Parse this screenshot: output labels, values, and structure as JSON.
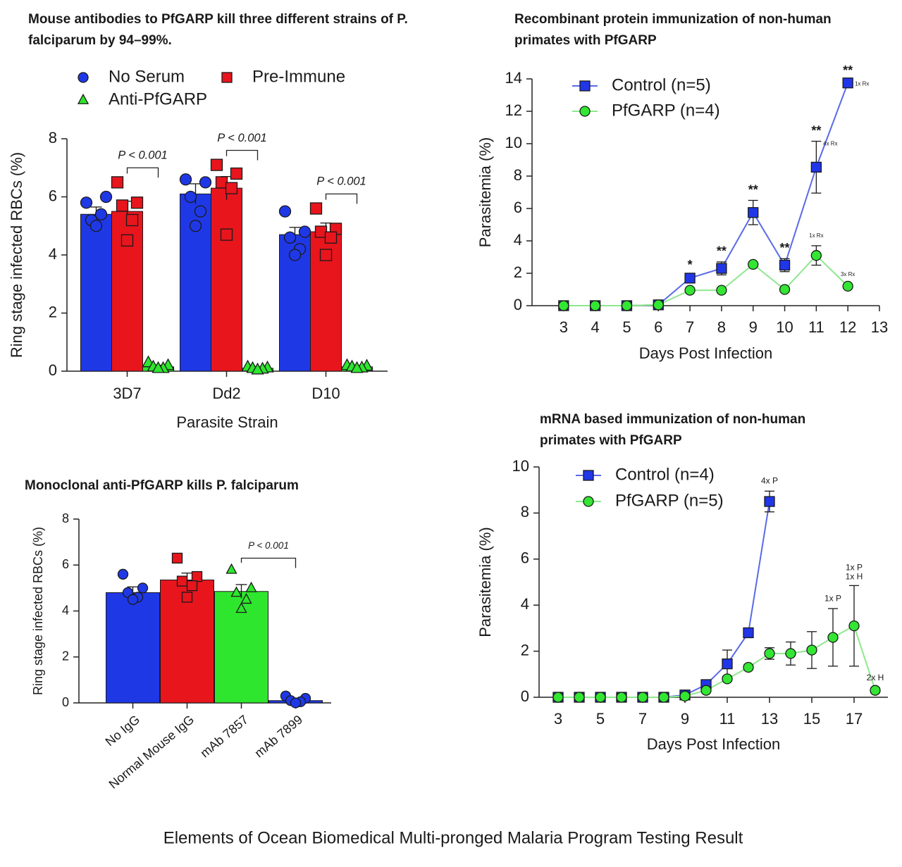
{
  "chart_data": [
    {
      "type": "bar",
      "title": "Mouse antibodies to PfGARP kill three different strains of P. falciparum by 94–99%.",
      "categories": [
        "3D7",
        "Dd2",
        "D10"
      ],
      "series": [
        {
          "name": "No Serum",
          "color": "#1f38e6",
          "marker": "circle",
          "values": [
            5.4,
            6.1,
            4.7
          ],
          "errors": [
            0.25,
            0.35,
            0.25
          ],
          "points": [
            [
              5.8,
              6.0,
              5.2,
              5.4,
              5.0
            ],
            [
              6.6,
              6.5,
              6.0,
              5.5,
              5.0
            ],
            [
              5.5,
              4.8,
              4.6,
              4.2,
              4.0
            ]
          ]
        },
        {
          "name": "Pre-Immune",
          "color": "#e8151d",
          "marker": "square",
          "values": [
            5.5,
            6.3,
            4.8
          ],
          "errors": [
            0.35,
            0.4,
            0.3
          ],
          "points": [
            [
              6.5,
              5.8,
              5.7,
              5.2,
              4.5
            ],
            [
              7.1,
              6.8,
              6.5,
              6.3,
              4.7
            ],
            [
              5.6,
              4.9,
              4.8,
              4.6,
              4.0
            ]
          ]
        },
        {
          "name": "Anti-PfGARP",
          "color": "#2ee62e",
          "marker": "triangle",
          "values": [
            0.15,
            0.1,
            0.15
          ],
          "errors": [
            0.05,
            0.03,
            0.04
          ],
          "points": [
            [
              0.3,
              0.2,
              0.15,
              0.1,
              0.1
            ],
            [
              0.15,
              0.12,
              0.1,
              0.08,
              0.05
            ],
            [
              0.2,
              0.18,
              0.15,
              0.12,
              0.1
            ]
          ]
        }
      ],
      "annotations": [
        "P < 0.001",
        "P < 0.001",
        "P < 0.001"
      ],
      "xlabel": "Parasite Strain",
      "ylabel": "Ring stage infected RBCs (%)",
      "ylim": [
        0,
        8
      ],
      "yticks": [
        0,
        2,
        4,
        6,
        8
      ],
      "legend": "top-left"
    },
    {
      "type": "line",
      "title": "Recombinant protein immunization of non-human primates with PfGARP",
      "series": [
        {
          "name": "Control (n=5)",
          "color": "#2036e8",
          "line_color": "#5a6ae8",
          "marker": "square",
          "x": [
            3,
            4,
            5,
            6,
            7,
            8,
            9,
            10,
            11,
            12
          ],
          "values": [
            0,
            0,
            0,
            0.05,
            1.7,
            2.3,
            5.75,
            2.5,
            8.55,
            13.75
          ],
          "errors": [
            0,
            0,
            0,
            0.05,
            0.15,
            0.4,
            0.75,
            0.4,
            1.6,
            0.1
          ],
          "significance": [
            null,
            null,
            null,
            null,
            "*",
            "**",
            "**",
            "**",
            "**",
            "**"
          ],
          "point_labels": [
            null,
            null,
            null,
            null,
            null,
            null,
            null,
            null,
            "4x Rx",
            "1x Rx"
          ]
        },
        {
          "name": "PfGARP (n=4)",
          "color": "#33e633",
          "line_color": "#8ee88e",
          "marker": "circle",
          "x": [
            3,
            4,
            5,
            6,
            7,
            8,
            9,
            10,
            11,
            12
          ],
          "values": [
            0,
            0,
            0,
            0.05,
            0.95,
            0.95,
            2.55,
            1.0,
            3.1,
            1.2
          ],
          "errors": [
            0,
            0,
            0,
            0,
            0.1,
            0.1,
            0.1,
            0.1,
            0.6,
            0.1
          ],
          "point_labels": [
            null,
            null,
            null,
            null,
            null,
            null,
            null,
            null,
            "1x Rx",
            "3x Rx"
          ]
        }
      ],
      "xlabel": "Days Post Infection",
      "ylabel": "Parasitemia (%)",
      "xlim": [
        2,
        13
      ],
      "xticks": [
        3,
        4,
        5,
        6,
        7,
        8,
        9,
        10,
        11,
        12,
        13
      ],
      "ylim": [
        0,
        14
      ],
      "yticks": [
        0,
        2,
        4,
        6,
        8,
        10,
        12,
        14
      ],
      "legend": "top-left"
    },
    {
      "type": "bar",
      "title": "Monoclonal anti-PfGARP kills P. falciparum",
      "categories": [
        "No IgG",
        "Normal Mouse IgG",
        "mAb 7857",
        "mAb 7899"
      ],
      "series": [
        {
          "colors": [
            "#1f38e6",
            "#e8151d",
            "#2ee62e",
            "#1f38e6"
          ],
          "markers": [
            "circle",
            "square",
            "triangle",
            "circle"
          ],
          "values": [
            4.8,
            5.35,
            4.85,
            0.1
          ],
          "errors": [
            0.25,
            0.3,
            0.3,
            0.05
          ],
          "points": [
            [
              5.6,
              5.0,
              4.8,
              4.6,
              4.5
            ],
            [
              6.3,
              5.5,
              5.3,
              5.1,
              4.6
            ],
            [
              5.8,
              5.0,
              4.8,
              4.5,
              4.1
            ],
            [
              0.3,
              0.2,
              0.1,
              0.05,
              0.0
            ]
          ]
        }
      ],
      "annotations": [
        "P < 0.001"
      ],
      "ylabel": "Ring stage infected RBCs (%)",
      "ylim": [
        0,
        8
      ],
      "yticks": [
        0,
        2,
        4,
        6,
        8
      ]
    },
    {
      "type": "line",
      "title": "mRNA based immunization of non-human primates with PfGARP",
      "series": [
        {
          "name": "Control (n=4)",
          "color": "#2036e8",
          "line_color": "#5a6ae8",
          "marker": "square",
          "x": [
            3,
            4,
            5,
            6,
            7,
            8,
            9,
            10,
            11,
            12,
            13
          ],
          "values": [
            0,
            0,
            0,
            0,
            0,
            0,
            0.1,
            0.55,
            1.45,
            2.8,
            8.5
          ],
          "errors": [
            0,
            0,
            0,
            0,
            0,
            0,
            0.05,
            0.1,
            0.6,
            0.2,
            0.45
          ],
          "point_labels": [
            null,
            null,
            null,
            null,
            null,
            null,
            null,
            null,
            null,
            null,
            "4x P"
          ]
        },
        {
          "name": "PfGARP (n=5)",
          "color": "#33e633",
          "line_color": "#8ee88e",
          "marker": "circle",
          "x": [
            3,
            4,
            5,
            6,
            7,
            8,
            9,
            10,
            11,
            12,
            13,
            14,
            15,
            16,
            17,
            18
          ],
          "values": [
            0,
            0,
            0,
            0,
            0,
            0,
            0.05,
            0.3,
            0.8,
            1.3,
            1.9,
            1.9,
            2.05,
            2.6,
            3.1,
            0.3
          ],
          "errors": [
            0,
            0,
            0,
            0,
            0,
            0,
            0,
            0.05,
            0.1,
            0.1,
            0.25,
            0.5,
            0.8,
            1.25,
            1.75,
            0.1
          ],
          "point_labels": [
            null,
            null,
            null,
            null,
            null,
            null,
            null,
            null,
            null,
            null,
            null,
            null,
            null,
            "1x P",
            [
              "1x P",
              "1x H"
            ],
            "2x H"
          ]
        }
      ],
      "xlabel": "Days Post Infection",
      "ylabel": "Parasitemia (%)",
      "xlim": [
        2.1,
        18.6
      ],
      "xticks": [
        3,
        5,
        7,
        9,
        11,
        13,
        15,
        17
      ],
      "ylim": [
        0,
        10
      ],
      "yticks": [
        0,
        2,
        4,
        6,
        8,
        10
      ],
      "legend": "top-left"
    }
  ],
  "caption": "Elements of Ocean Biomedical Multi-pronged Malaria Program Testing Result"
}
